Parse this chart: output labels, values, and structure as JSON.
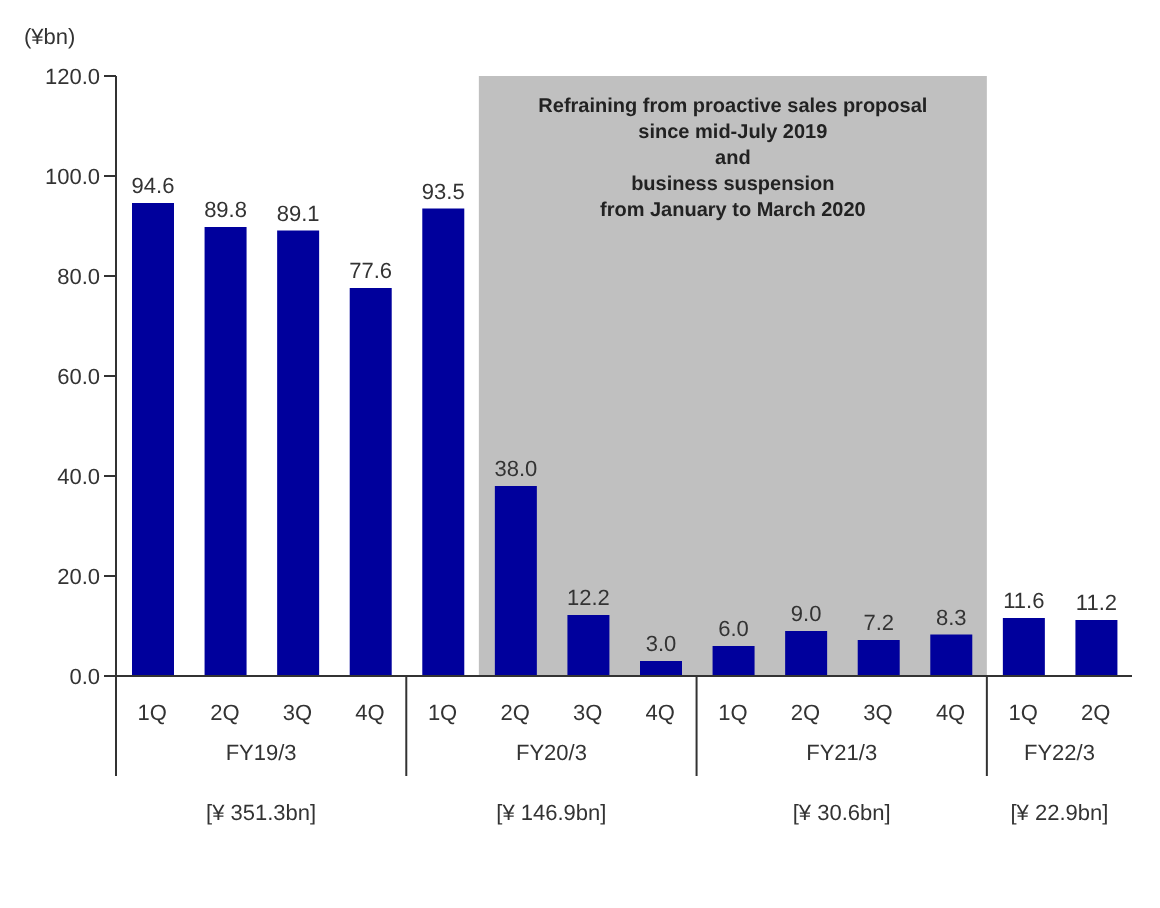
{
  "chart_data": {
    "type": "bar",
    "ylabel": "(¥bn)",
    "categories": [
      "1Q",
      "2Q",
      "3Q",
      "4Q",
      "1Q",
      "2Q",
      "3Q",
      "4Q",
      "1Q",
      "2Q",
      "3Q",
      "4Q",
      "1Q",
      "2Q"
    ],
    "values": [
      94.6,
      89.8,
      89.1,
      77.6,
      93.5,
      38.0,
      12.2,
      3.0,
      6.0,
      9.0,
      7.2,
      8.3,
      11.6,
      11.2
    ],
    "color": "#00009c",
    "value_labels": [
      "94.6",
      "89.8",
      "89.1",
      "77.6",
      "93.5",
      "38.0",
      "12.2",
      "3.0",
      "6.0",
      "9.0",
      "7.2",
      "8.3",
      "11.6",
      "11.2"
    ],
    "ylim": [
      0,
      120
    ],
    "yticks": [
      {
        "value": 0,
        "label": "0.0"
      },
      {
        "value": 20,
        "label": "20.0"
      },
      {
        "value": 40,
        "label": "40.0"
      },
      {
        "value": 60,
        "label": "60.0"
      },
      {
        "value": 80,
        "label": "80.0"
      },
      {
        "value": 100,
        "label": "100.0"
      },
      {
        "value": 120,
        "label": "120.0"
      }
    ],
    "annotations": [
      "Refraining from proactive sales proposal\nsince mid-July 2019\nand\nbusiness suspension\nfrom January to March 2020",
      "FY19/3",
      "[¥ 351.3bn]",
      "FY20/3",
      "[¥ 146.9bn]",
      "FY21/3",
      "[¥ 30.6bn]",
      "FY22/3",
      "[¥ 22.9bn]"
    ],
    "grid": false,
    "legend": false
  }
}
